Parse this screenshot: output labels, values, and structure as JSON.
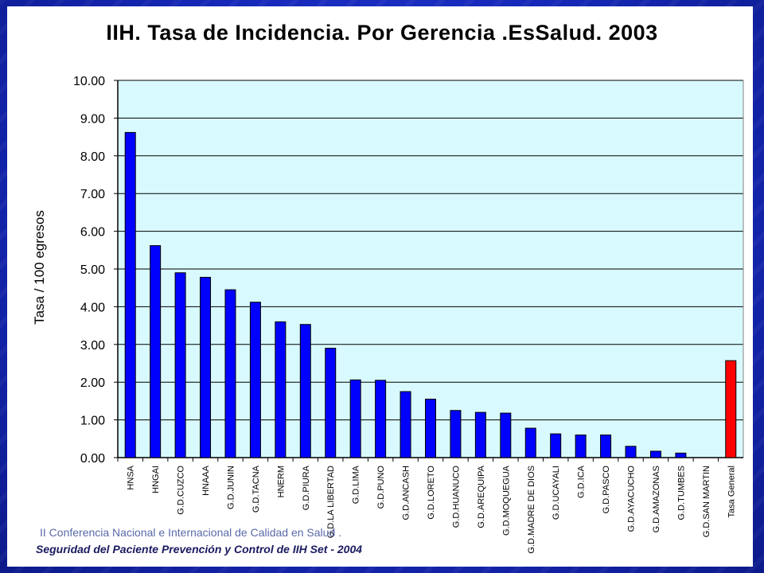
{
  "chart_data": {
    "type": "bar",
    "title": "IIH. Tasa de Incidencia. Por Gerencia .EsSalud. 2003",
    "ylabel": "Tasa / 100 egresos",
    "xlabel": "",
    "ylim": [
      0,
      10
    ],
    "yticks": [
      "0.00",
      "1.00",
      "2.00",
      "3.00",
      "4.00",
      "5.00",
      "6.00",
      "7.00",
      "8.00",
      "9.00",
      "10.00"
    ],
    "grid": true,
    "categories": [
      "HNSA",
      "HNGAI",
      "G.D.CUZCO",
      "HNAAA",
      "G.D.JUNIN",
      "G.D.TACNA",
      "HNERM",
      "G.D.PIURA",
      "G.D.LA LIBERTAD",
      "G.D.LIMA",
      "G.D.PUNO",
      "G.D.ANCASH",
      "G.D.LORETO",
      "G.D.HUANUCO",
      "G.D.AREQUIPA",
      "G.D.MOQUEGUA",
      "G.D.MADRE DE DIOS",
      "G.D.UCAYALI",
      "G.D.ICA",
      "G.D.PASCO",
      "G.D.AYACUCHO",
      "G.D.AMAZONAS",
      "G.D.TUMBES",
      "G.D.SAN MARTIN",
      "Tasa General"
    ],
    "values": [
      8.62,
      5.62,
      4.9,
      4.78,
      4.45,
      4.12,
      3.6,
      3.53,
      2.9,
      2.06,
      2.05,
      1.75,
      1.55,
      1.25,
      1.2,
      1.18,
      0.78,
      0.63,
      0.6,
      0.6,
      0.3,
      0.17,
      0.12,
      0.0,
      2.57
    ],
    "colors": {
      "bar": "#0000ff",
      "highlight": "#ff0000",
      "plot_bg": "#d8fafe"
    }
  },
  "footer": {
    "line1": "II Conferencia Nacional e Internacional de Calidad en Salud .",
    "line2": "Seguridad del Paciente Prevención y Control de IIH   Set - 2004"
  }
}
